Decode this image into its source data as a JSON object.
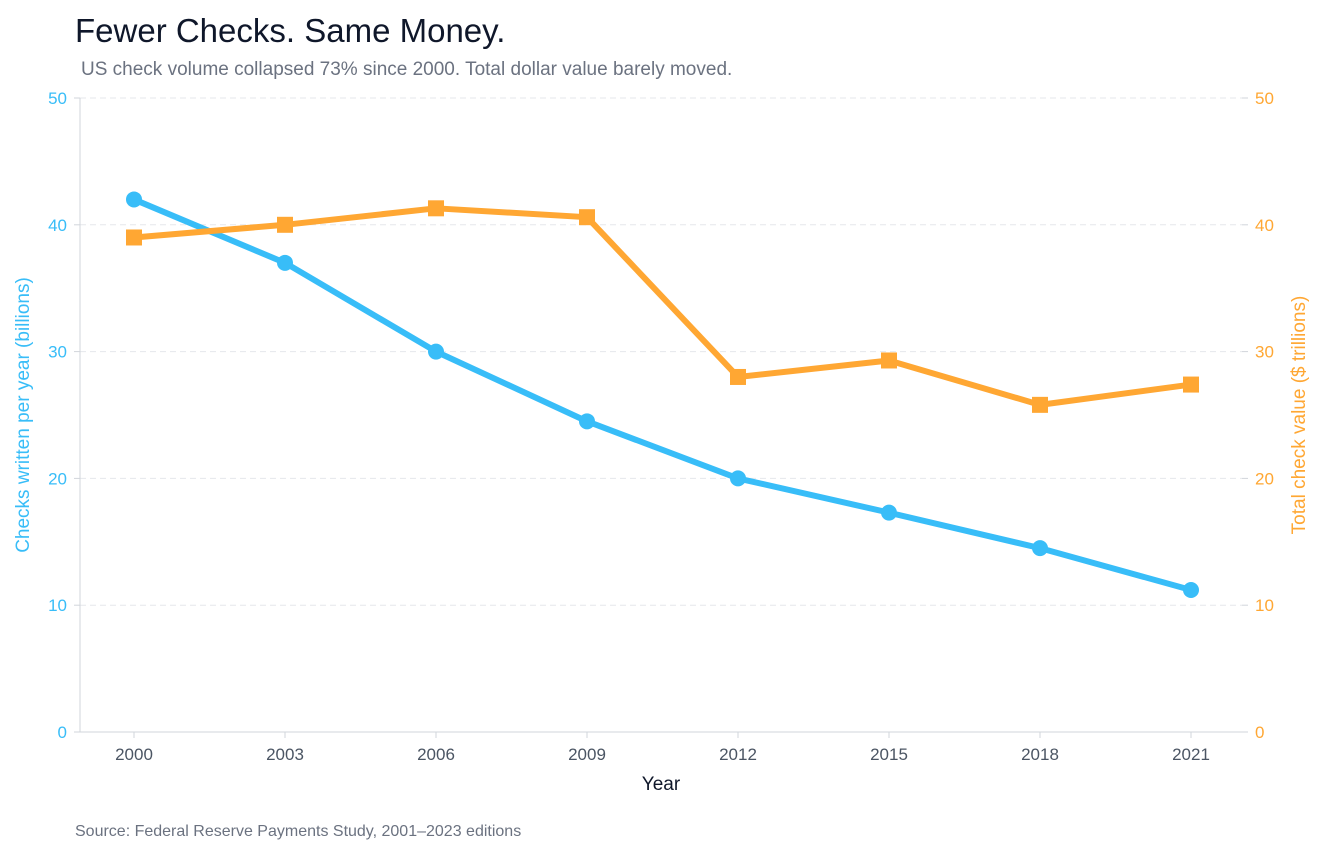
{
  "title": "Fewer Checks. Same Money.",
  "subtitle": "US check volume collapsed 73% since 2000. Total dollar value barely moved.",
  "source": "Source: Federal Reserve Payments Study, 2001–2023 editions",
  "chart_data": {
    "type": "line",
    "x": [
      2000,
      2003,
      2006,
      2009,
      2012,
      2015,
      2018,
      2021
    ],
    "xlabel": "Year",
    "xtick_labels": [
      "2000",
      "2003",
      "2006",
      "2009",
      "2012",
      "2015",
      "2018",
      "2021"
    ],
    "ylabel_left": "Checks written per year (billions)",
    "ylabel_right": "Total check value ($ trillions)",
    "ylim_left": [
      0,
      50
    ],
    "ylim_right": [
      0,
      50
    ],
    "yticks": [
      0,
      10,
      20,
      30,
      40,
      50
    ],
    "grid": "horizontal dashed",
    "series": [
      {
        "axis": "left",
        "color": "#38bdf8",
        "marker": "circle",
        "values": [
          42.0,
          37.0,
          30.0,
          24.5,
          20.0,
          17.3,
          14.5,
          11.2
        ]
      },
      {
        "axis": "right",
        "color": "#ffa733",
        "marker": "square",
        "values": [
          39.0,
          40.0,
          41.3,
          40.6,
          28.0,
          29.3,
          25.8,
          27.4
        ]
      }
    ]
  }
}
